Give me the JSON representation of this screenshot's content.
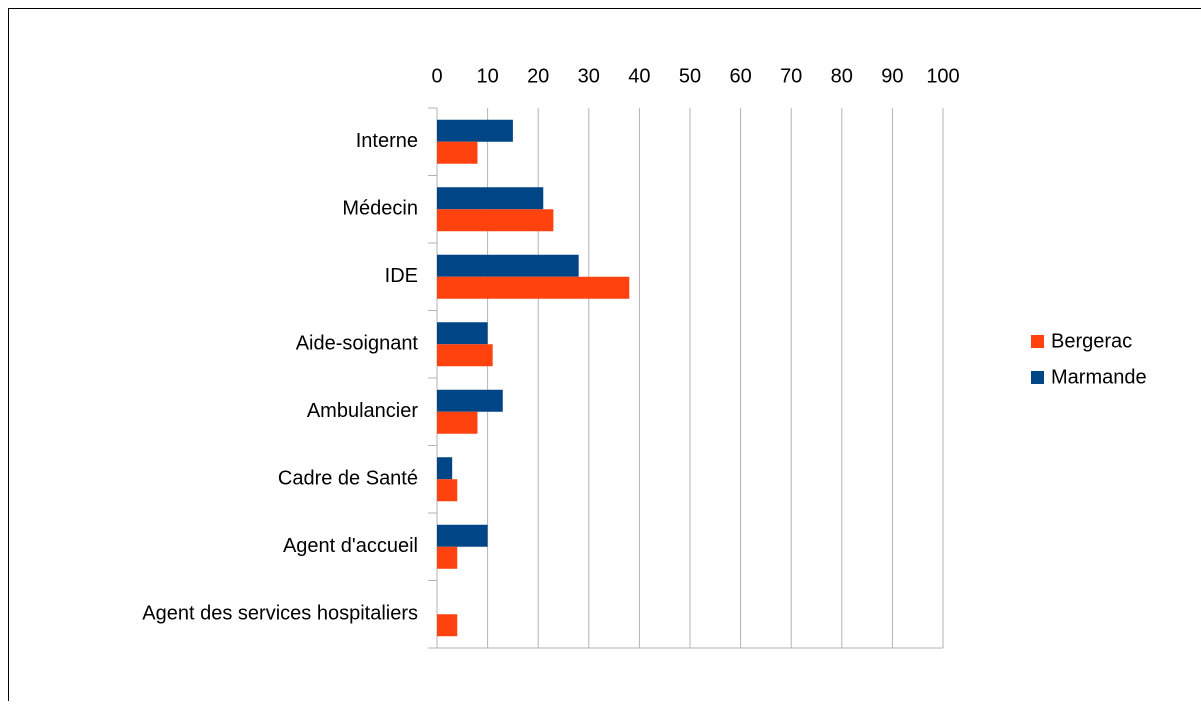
{
  "chart_data": {
    "type": "bar",
    "orientation": "horizontal",
    "categories": [
      "Interne",
      "Médecin",
      "IDE",
      "Aide-soignant",
      "Ambulancier",
      "Cadre de Santé",
      "Agent d'accueil",
      "Agent des services hospitaliers"
    ],
    "series": [
      {
        "name": "Bergerac",
        "color": "#ff420e",
        "values": [
          8,
          23,
          38,
          11,
          8,
          4,
          4,
          4
        ]
      },
      {
        "name": "Marmande",
        "color": "#004586",
        "values": [
          15,
          21,
          28,
          10,
          13,
          3,
          10,
          0
        ]
      }
    ],
    "xlim": [
      0,
      100
    ],
    "xticks": [
      0,
      10,
      20,
      30,
      40,
      50,
      60,
      70,
      80,
      90,
      100
    ],
    "grid": true,
    "legend": "right"
  }
}
